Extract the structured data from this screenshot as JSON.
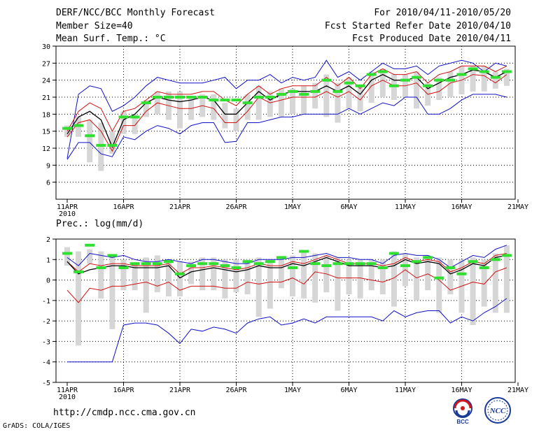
{
  "header": {
    "title": "DERF/NCC/BCC Monthly Forecast",
    "member_size": "Member Size=40",
    "variable": "Mean Surf. Temp.: °C",
    "period": "For 2010/04/11-2010/05/20",
    "started": "Fcst Started Refer Date 2010/04/10",
    "produced": "Fcst Produced Date 2010/04/11"
  },
  "footer": {
    "url": "http://cmdp.ncc.cma.gov.cn",
    "credit": "GrADS: COLA/IGES",
    "logo_bcc_text": "BCC",
    "logo_ncc_text": "NCC"
  },
  "colors": {
    "envelope": "#1010c8",
    "spread": "#d01010",
    "mean": "#000000",
    "observed": "#30e030",
    "box": "#d6d6d6"
  },
  "chart_data": [
    {
      "type": "line",
      "title": "Mean Surf. Temp.: °C",
      "x_day_labels": [
        "11APR",
        "16APR",
        "21APR",
        "26APR",
        "1MAY",
        "6MAY",
        "11MAY",
        "16MAY",
        "21MAY"
      ],
      "x_year_label": "2010",
      "ylim": [
        3,
        30
      ],
      "yticks": [
        6,
        9,
        12,
        15,
        18,
        21,
        24,
        27,
        30
      ],
      "days": 40,
      "series": [
        {
          "name": "max",
          "values": [
            10.2,
            21.5,
            23,
            22.5,
            18.5,
            19.5,
            21,
            23,
            24.5,
            24,
            23.5,
            23.5,
            23.5,
            24,
            24.5,
            22.5,
            24,
            24,
            25,
            23.5,
            24.5,
            24,
            24.5,
            27.5,
            24.5,
            25.5,
            24,
            25.5,
            27,
            26,
            26,
            26.5,
            25,
            26.5,
            27,
            27.5,
            27,
            25.5,
            27,
            26.5
          ]
        },
        {
          "name": "upper",
          "values": [
            15,
            18.5,
            20,
            19,
            15,
            18.5,
            19,
            20.5,
            22,
            21.5,
            21.5,
            21.5,
            22,
            22,
            20.5,
            19.5,
            21.5,
            23,
            21.5,
            22.5,
            23,
            23,
            23,
            24.5,
            23,
            24.5,
            22.5,
            25,
            26,
            25,
            25,
            25.5,
            23.5,
            25,
            25.5,
            26.5,
            26.5,
            26.5,
            25.5,
            26.5
          ]
        },
        {
          "name": "mean",
          "values": [
            14.5,
            17.5,
            18.5,
            17,
            12.2,
            17,
            18,
            20,
            21,
            20.5,
            20.2,
            20.5,
            21,
            20.5,
            18,
            18,
            20,
            22,
            20.5,
            21.5,
            22,
            22,
            22,
            23,
            22,
            23,
            21.5,
            24,
            25,
            24,
            24,
            24.5,
            22.5,
            23.5,
            24.5,
            25,
            25.8,
            25.5,
            24.5,
            25.5
          ]
        },
        {
          "name": "lower",
          "values": [
            14,
            16.5,
            17,
            15,
            11.5,
            16,
            16,
            18.5,
            20,
            19.5,
            19,
            19,
            19.5,
            19,
            16.5,
            16.5,
            18.5,
            21,
            20,
            20.5,
            21,
            21,
            21,
            22,
            21,
            22,
            20.5,
            23,
            24,
            23,
            23,
            23.5,
            21.5,
            22,
            23.5,
            24,
            25,
            24.8,
            23.5,
            25
          ]
        },
        {
          "name": "min",
          "values": [
            10,
            13,
            13,
            11,
            10.5,
            14,
            13.5,
            15,
            16,
            15.5,
            14.5,
            16,
            16.5,
            16.5,
            13,
            13.2,
            16.5,
            16.5,
            17,
            17.5,
            17.5,
            18,
            18,
            18,
            18,
            19,
            18,
            19,
            20,
            19.5,
            21,
            21,
            18,
            18,
            19,
            20.5,
            21.5,
            21.5,
            21.5,
            21
          ]
        },
        {
          "name": "observed",
          "values": [
            15.5,
            16,
            14.2,
            12.5,
            12.5,
            17.5,
            17.5,
            20,
            21,
            21,
            21,
            21,
            21,
            20.5,
            20.5,
            20.5,
            20,
            21,
            21,
            21.5,
            22,
            21.5,
            22,
            24,
            22,
            23.5,
            23,
            25,
            25.5,
            23,
            24,
            24.5,
            23,
            24,
            24,
            25,
            26,
            25.5,
            24.5,
            25.5
          ]
        },
        {
          "name": "box_high",
          "values": [
            16,
            17.5,
            17,
            16.5,
            15,
            18.5,
            18,
            20.5,
            22,
            22,
            22,
            21,
            21.5,
            21.5,
            20,
            19,
            21.5,
            23,
            22,
            22.5,
            22.5,
            23,
            23.5,
            25,
            23.5,
            24.5,
            23,
            25.5,
            26,
            25,
            25,
            25.5,
            23.5,
            24.5,
            25.5,
            26.5,
            26.5,
            26.5,
            25.5,
            26
          ]
        },
        {
          "name": "box_low",
          "values": [
            14,
            14,
            9.5,
            8,
            11,
            14.5,
            14.5,
            17.5,
            18,
            17,
            15.5,
            17,
            17.5,
            17,
            15.5,
            15,
            17,
            17,
            17.5,
            17.5,
            18,
            18,
            19,
            17.5,
            16.5,
            19,
            18.5,
            20,
            21,
            20.5,
            21,
            19,
            19.5,
            20.5,
            21,
            21.5,
            22,
            22,
            22.5,
            23
          ]
        }
      ]
    },
    {
      "type": "line",
      "title": "Prec.: log(mm/d)",
      "x_day_labels": [
        "11APR",
        "16APR",
        "21APR",
        "26APR",
        "1MAY",
        "6MAY",
        "11MAY",
        "16MAY",
        "21MAY"
      ],
      "x_year_label": "2010",
      "ylim": [
        -5,
        2
      ],
      "yticks": [
        -5,
        -4,
        -3,
        -2,
        -1,
        0,
        1,
        2
      ],
      "days": 40,
      "series": [
        {
          "name": "max",
          "values": [
            1.1,
            0.7,
            1.3,
            1.2,
            1.1,
            1.2,
            1.0,
            0.9,
            0.9,
            1.0,
            0.9,
            0.8,
            1.0,
            1.0,
            0.9,
            0.8,
            0.8,
            1.0,
            1.0,
            1.0,
            1.1,
            1.1,
            1.2,
            1.3,
            1.1,
            1.1,
            1.0,
            1.0,
            0.8,
            1.2,
            1.3,
            1.2,
            1.2,
            1.0,
            0.6,
            0.9,
            1.2,
            1.1,
            1.5,
            1.7
          ]
        },
        {
          "name": "upper",
          "values": [
            0.9,
            0.4,
            0.8,
            0.7,
            0.8,
            0.8,
            0.7,
            0.7,
            0.7,
            0.8,
            0.3,
            0.6,
            0.6,
            0.7,
            0.6,
            0.5,
            0.6,
            0.8,
            0.7,
            0.7,
            0.9,
            0.8,
            1.0,
            1.2,
            1.0,
            0.8,
            0.8,
            0.8,
            0.7,
            0.8,
            1.1,
            0.9,
            1.0,
            0.9,
            0.4,
            0.6,
            0.9,
            0.8,
            1.2,
            1.3
          ]
        },
        {
          "name": "mean",
          "values": [
            0.9,
            0.3,
            0.5,
            0.6,
            0.7,
            0.7,
            0.6,
            0.6,
            0.6,
            0.7,
            0.1,
            0.4,
            0.5,
            0.6,
            0.5,
            0.4,
            0.5,
            0.7,
            0.6,
            0.6,
            0.8,
            0.7,
            0.9,
            1.1,
            0.9,
            0.7,
            0.7,
            0.7,
            0.6,
            0.7,
            1.0,
            0.8,
            0.9,
            0.8,
            0.3,
            0.5,
            0.8,
            0.7,
            1.1,
            1.2
          ]
        },
        {
          "name": "lower",
          "values": [
            -0.5,
            -1.1,
            -0.4,
            -0.5,
            -0.3,
            -0.3,
            -0.2,
            -0.1,
            -0.3,
            -0.1,
            -0.5,
            -0.3,
            -0.3,
            -0.3,
            -0.4,
            -0.4,
            -0.1,
            -0.2,
            -0.1,
            -0.1,
            0.1,
            -0.2,
            0.4,
            0.3,
            0.1,
            0.1,
            0.1,
            0.0,
            -0.1,
            0.1,
            0.5,
            0.1,
            0.3,
            0.0,
            -0.5,
            -0.3,
            -0.1,
            -0.2,
            0.4,
            0.6
          ]
        },
        {
          "name": "min",
          "values": [
            -4.0,
            -4.0,
            -4.0,
            -4.0,
            -4.0,
            -2.2,
            -2.1,
            -2.1,
            -2.2,
            -2.6,
            -3.1,
            -2.4,
            -2.5,
            -2.3,
            -2.4,
            -2.6,
            -2.1,
            -1.9,
            -1.8,
            -2.2,
            -2.1,
            -1.9,
            -2.1,
            -1.8,
            -1.8,
            -1.8,
            -1.8,
            -1.8,
            -2.0,
            -1.5,
            -1.8,
            -1.6,
            -1.5,
            -1.5,
            -2.1,
            -1.8,
            -2.0,
            -1.6,
            -1.3,
            -0.9
          ]
        },
        {
          "name": "observed",
          "values": [
            1.3,
            0.4,
            1.7,
            0.6,
            1.2,
            0.6,
            0.8,
            0.8,
            0.8,
            0.9,
            0.3,
            0.7,
            0.8,
            0.8,
            0.7,
            0.6,
            0.9,
            0.8,
            0.9,
            1.1,
            0.6,
            1.4,
            0.8,
            0.7,
            0.8,
            0.8,
            0.8,
            0.8,
            0.6,
            1.3,
            0.7,
            0.9,
            1.1,
            0.1,
            0.6,
            0.3,
            0.9,
            0.6,
            1.0,
            1.2
          ]
        },
        {
          "name": "box_high",
          "values": [
            1.6,
            1.4,
            1.5,
            1.4,
            1.2,
            1.0,
            0.8,
            1.1,
            1.2,
            1.0,
            0.9,
            0.9,
            1.1,
            1.1,
            1.0,
            1.0,
            1.0,
            1.1,
            0.9,
            1.0,
            1.2,
            1.4,
            1.3,
            1.2,
            1.1,
            1.0,
            1.0,
            1.0,
            1.0,
            1.4,
            1.3,
            1.1,
            1.2,
            1.1,
            1.0,
            1.0,
            1.1,
            1.0,
            1.3,
            1.7
          ]
        },
        {
          "name": "box_low",
          "values": [
            0.7,
            -3.2,
            0.8,
            -0.9,
            -2.4,
            -0.5,
            -0.5,
            -1.6,
            -0.6,
            -0.8,
            -0.8,
            -0.2,
            -0.5,
            -0.5,
            -0.9,
            -0.6,
            -0.7,
            -1.8,
            -1.4,
            -0.4,
            -0.8,
            -0.9,
            -1.1,
            -0.6,
            -1.5,
            -0.7,
            -0.9,
            -0.5,
            -0.7,
            -1.3,
            -0.3,
            -1.0,
            -0.5,
            -1.6,
            -0.7,
            -1.6,
            -2.2,
            -1.3,
            -1.6,
            -1.6
          ]
        }
      ]
    }
  ]
}
